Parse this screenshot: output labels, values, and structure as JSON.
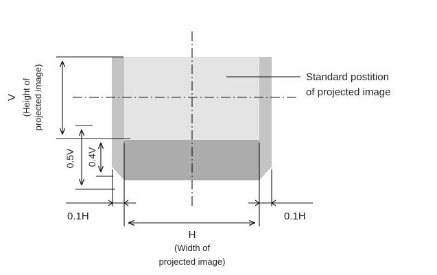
{
  "colors": {
    "outer_zone": "#c4c4c4",
    "shift_zone": "#acacac",
    "standard_image": "#e4e4e4",
    "lines": "#111111"
  },
  "labels": {
    "standard_position_line1": "Standard postition",
    "standard_position_line2": "of projected image",
    "v_symbol": "V",
    "v_caption_line1": "(Height of",
    "v_caption_line2": "projected image)",
    "half_v": "0.5V",
    "point_four_v": "0.4V",
    "point_one_h_left": "0.1H",
    "point_one_h_right": "0.1H",
    "h_symbol": "H",
    "h_caption_line1": "(Width of",
    "h_caption_line2": "projected image)"
  }
}
